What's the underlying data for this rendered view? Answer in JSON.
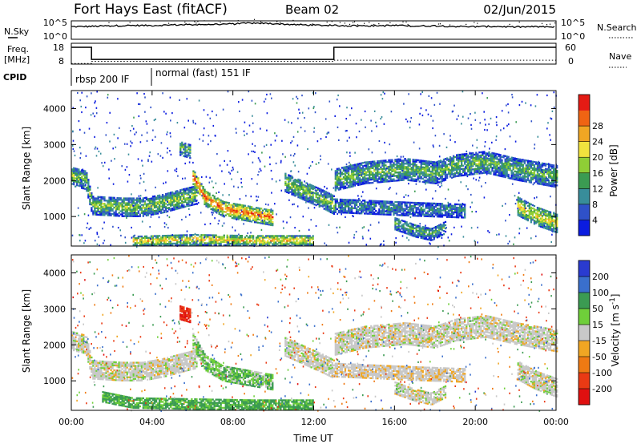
{
  "header": {
    "title": "Fort Hays East (fitACF)",
    "beam": "Beam 02",
    "date": "02/Jun/2015"
  },
  "chart_data": [
    {
      "type": "line",
      "name": "N.Sky",
      "ylabel": "N.Sky",
      "left_ticks": [
        "10^5",
        "10^0"
      ],
      "right_label": "N.Search",
      "right_ticks": [
        "10^5",
        "10^0"
      ],
      "x_hours": [
        0,
        1,
        2,
        3,
        4,
        5,
        6,
        7,
        8,
        9,
        10,
        11,
        12,
        13,
        14,
        15,
        16,
        17,
        18,
        19,
        20,
        21,
        22,
        23,
        24
      ],
      "log_values": [
        3.6,
        3.7,
        3.9,
        4.0,
        4.0,
        4.2,
        4.3,
        4.4,
        4.5,
        4.8,
        4.6,
        4.3,
        4.1,
        4.0,
        3.9,
        3.9,
        4.0,
        3.8,
        3.9,
        3.7,
        3.6,
        3.7,
        3.5,
        3.6,
        3.5
      ]
    },
    {
      "type": "line",
      "name": "Freq",
      "ylabel_line1": "Freq.",
      "ylabel_line2": "[MHz]",
      "left_ticks": [
        "18",
        "8"
      ],
      "right_label": "Nave",
      "right_ticks": [
        "60",
        "0"
      ],
      "freq_steps": [
        [
          0,
          18
        ],
        [
          1.0,
          10.8
        ],
        [
          13.0,
          18
        ],
        [
          24,
          18
        ]
      ],
      "nave_steps": [
        [
          0,
          2
        ],
        [
          1.0,
          10
        ],
        [
          13.0,
          14
        ],
        [
          24,
          14
        ]
      ],
      "cpid_label": "CPID",
      "cpid_segments": [
        {
          "start_hour": 0.0,
          "label": "rbsp 200 IF"
        },
        {
          "start_hour": 3.9,
          "label": "normal (fast) 151 IF"
        }
      ]
    },
    {
      "type": "heatmap",
      "name": "Power",
      "ylabel": "Slant Range [km]",
      "yticks": [
        1000,
        2000,
        3000,
        4000
      ],
      "ylim": [
        180,
        4500
      ],
      "xlim": [
        0,
        24
      ],
      "colorbar_title": "Power [dB]",
      "colorbar_ticks": [
        "4",
        "8",
        "12",
        "16",
        "20",
        "24",
        "28"
      ],
      "colors": [
        "#0b1ce0",
        "#2f51c9",
        "#388d9a",
        "#3b9b52",
        "#8fce36",
        "#f1e23e",
        "#f0a623",
        "#ef6413",
        "#e41b14"
      ],
      "echo_bands": [
        {
          "path": [
            [
              0,
              2100
            ],
            [
              0.7,
              2000
            ],
            [
              1.0,
              1300
            ],
            [
              2.5,
              1250
            ],
            [
              3.5,
              1250
            ],
            [
              4.5,
              1350
            ],
            [
              5.5,
              1500
            ],
            [
              6.2,
              1600
            ]
          ],
          "width": 260,
          "strength": 0.5
        },
        {
          "path": [
            [
              6.0,
              2100
            ],
            [
              6.6,
              1500
            ],
            [
              7.5,
              1200
            ],
            [
              9.0,
              1050
            ],
            [
              10.0,
              950
            ]
          ],
          "width": 220,
          "strength": 0.85
        },
        {
          "path": [
            [
              10.5,
              1950
            ],
            [
              11.5,
              1700
            ],
            [
              12.5,
              1450
            ],
            [
              13.0,
              1300
            ]
          ],
          "width": 260,
          "strength": 0.5
        },
        {
          "path": [
            [
              13.0,
              2000
            ],
            [
              14.5,
              2200
            ],
            [
              16.5,
              2300
            ],
            [
              18.0,
              2200
            ],
            [
              19.0,
              2400
            ],
            [
              20.5,
              2500
            ],
            [
              22.0,
              2300
            ],
            [
              24,
              2100
            ]
          ],
          "width": 300,
          "strength": 0.45
        },
        {
          "path": [
            [
              13.0,
              1300
            ],
            [
              15.0,
              1250
            ],
            [
              17.0,
              1200
            ],
            [
              19.5,
              1150
            ]
          ],
          "width": 200,
          "strength": 0.3
        },
        {
          "path": [
            [
              16.0,
              800
            ],
            [
              17.0,
              600
            ],
            [
              17.8,
              500
            ],
            [
              18.5,
              700
            ]
          ],
          "width": 180,
          "strength": 0.4
        },
        {
          "path": [
            [
              22.0,
              1300
            ],
            [
              23.0,
              1000
            ],
            [
              24,
              800
            ]
          ],
          "width": 260,
          "strength": 0.65
        },
        {
          "path": [
            [
              3.0,
              300
            ],
            [
              6.0,
              350
            ],
            [
              9.0,
              320
            ],
            [
              12.0,
              320
            ]
          ],
          "width": 150,
          "strength": 0.7
        },
        {
          "path": [
            [
              5.3,
              2900
            ],
            [
              5.9,
              2800
            ]
          ],
          "width": 200,
          "strength": 0.45
        }
      ]
    },
    {
      "type": "heatmap",
      "name": "Velocity",
      "ylabel": "Slant Range [km]",
      "yticks": [
        1000,
        2000,
        3000,
        4000
      ],
      "ylim": [
        180,
        4500
      ],
      "xlim": [
        0,
        24
      ],
      "xticks": [
        "00:00",
        "04:00",
        "08:00",
        "12:00",
        "16:00",
        "20:00",
        "00:00"
      ],
      "xlabel": "Time UT",
      "colorbar_title": "Velocity [m s^-1]",
      "colorbar_ticks": [
        "200",
        "100",
        "50",
        "15",
        "-15",
        "-50",
        "-100",
        "-200"
      ],
      "colors": [
        "#2a3bd0",
        "#3a6fcc",
        "#3b9b52",
        "#6fcf3a",
        "#c8c8c8",
        "#f0a623",
        "#ef7a13",
        "#ea3a14",
        "#e01010"
      ],
      "echo_bands": [
        {
          "path": [
            [
              0,
              2100
            ],
            [
              0.7,
              2000
            ],
            [
              1.0,
              1300
            ],
            [
              2.5,
              1250
            ],
            [
              3.5,
              1250
            ],
            [
              4.5,
              1350
            ],
            [
              5.5,
              1500
            ],
            [
              6.2,
              1600
            ]
          ],
          "width": 260,
          "v": 0
        },
        {
          "path": [
            [
              6.0,
              2100
            ],
            [
              6.6,
              1500
            ],
            [
              7.5,
              1200
            ],
            [
              9.0,
              1050
            ],
            [
              10.0,
              950
            ]
          ],
          "width": 220,
          "v": 25
        },
        {
          "path": [
            [
              10.5,
              1950
            ],
            [
              11.5,
              1700
            ],
            [
              12.5,
              1450
            ],
            [
              13.0,
              1300
            ]
          ],
          "width": 260,
          "v": 0
        },
        {
          "path": [
            [
              13.0,
              2000
            ],
            [
              14.5,
              2200
            ],
            [
              16.5,
              2300
            ],
            [
              18.0,
              2200
            ],
            [
              19.0,
              2400
            ],
            [
              20.5,
              2500
            ],
            [
              22.0,
              2300
            ],
            [
              24,
              2100
            ]
          ],
          "width": 300,
          "v": 0
        },
        {
          "path": [
            [
              13.0,
              1300
            ],
            [
              15.0,
              1250
            ],
            [
              17.0,
              1200
            ],
            [
              19.5,
              1150
            ]
          ],
          "width": 200,
          "v": -5
        },
        {
          "path": [
            [
              16.0,
              800
            ],
            [
              17.0,
              600
            ],
            [
              17.8,
              500
            ],
            [
              18.5,
              700
            ]
          ],
          "width": 180,
          "v": 0
        },
        {
          "path": [
            [
              22.0,
              1300
            ],
            [
              23.0,
              1000
            ],
            [
              24,
              800
            ]
          ],
          "width": 260,
          "v": 0
        },
        {
          "path": [
            [
              1.5,
              550
            ],
            [
              3.0,
              380
            ],
            [
              6.0,
              350
            ],
            [
              9.0,
              320
            ],
            [
              12.0,
              320
            ]
          ],
          "width": 150,
          "v": 40
        },
        {
          "path": [
            [
              5.3,
              2900
            ],
            [
              5.9,
              2800
            ]
          ],
          "width": 200,
          "v": -150
        }
      ]
    }
  ]
}
